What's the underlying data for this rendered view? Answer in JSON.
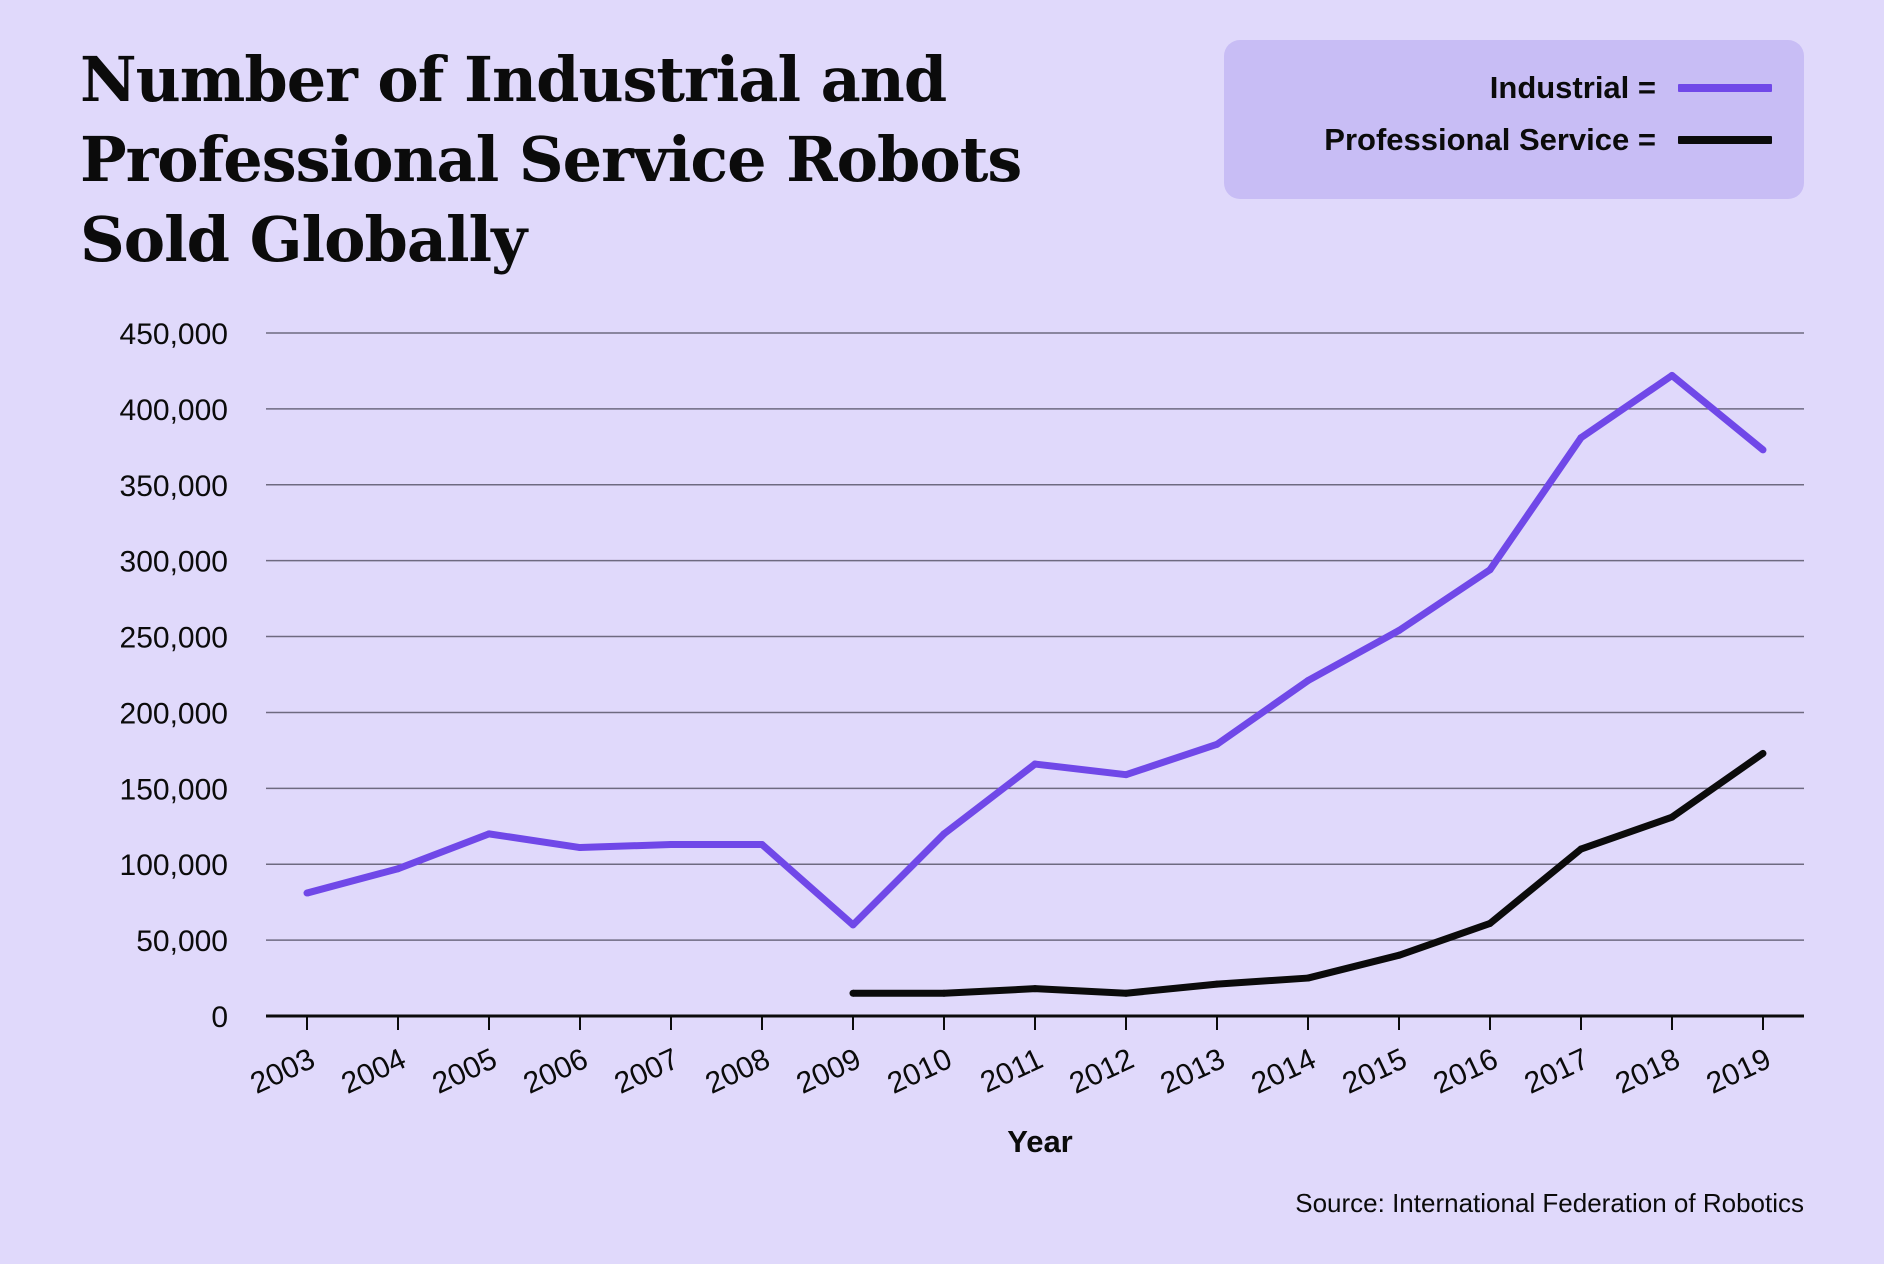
{
  "title": "Number of Industrial and Professional Service Robots Sold Globally",
  "title_lines": [
    "Number of Industrial and",
    "Professional Service Robots",
    "Sold Globally"
  ],
  "source": "Source: International Federation of Robotics",
  "legend": [
    {
      "label": "Industrial =",
      "color": "#7048e8"
    },
    {
      "label": "Professional Service =",
      "color": "#0b0b0b"
    }
  ],
  "chart_data": {
    "type": "line",
    "title": "Number of Industrial and Professional Service Robots Sold Globally",
    "xlabel": "Year",
    "ylabel": "",
    "ylim": [
      0,
      450000
    ],
    "yticks": [
      0,
      50000,
      100000,
      150000,
      200000,
      250000,
      300000,
      350000,
      400000,
      450000
    ],
    "ytick_labels": [
      "0",
      "50,000",
      "100,000",
      "150,000",
      "200,000",
      "250,000",
      "300,000",
      "350,000",
      "400,000",
      "450,000"
    ],
    "categories": [
      "2003",
      "2004",
      "2005",
      "2006",
      "2007",
      "2008",
      "2009",
      "2010",
      "2011",
      "2012",
      "2013",
      "2014",
      "2015",
      "2016",
      "2017",
      "2018",
      "2019"
    ],
    "grid": true,
    "legend_position": "top-right",
    "series": [
      {
        "name": "Industrial",
        "color": "#7048e8",
        "values": [
          81000,
          97000,
          120000,
          111000,
          113000,
          113000,
          60000,
          120000,
          166000,
          159000,
          179000,
          221000,
          254000,
          294000,
          381000,
          422000,
          373000
        ]
      },
      {
        "name": "Professional Service",
        "color": "#0b0b0b",
        "values": [
          null,
          null,
          null,
          null,
          null,
          null,
          15000,
          15000,
          18000,
          15000,
          21000,
          25000,
          40000,
          61000,
          110000,
          131000,
          173000
        ]
      }
    ]
  }
}
